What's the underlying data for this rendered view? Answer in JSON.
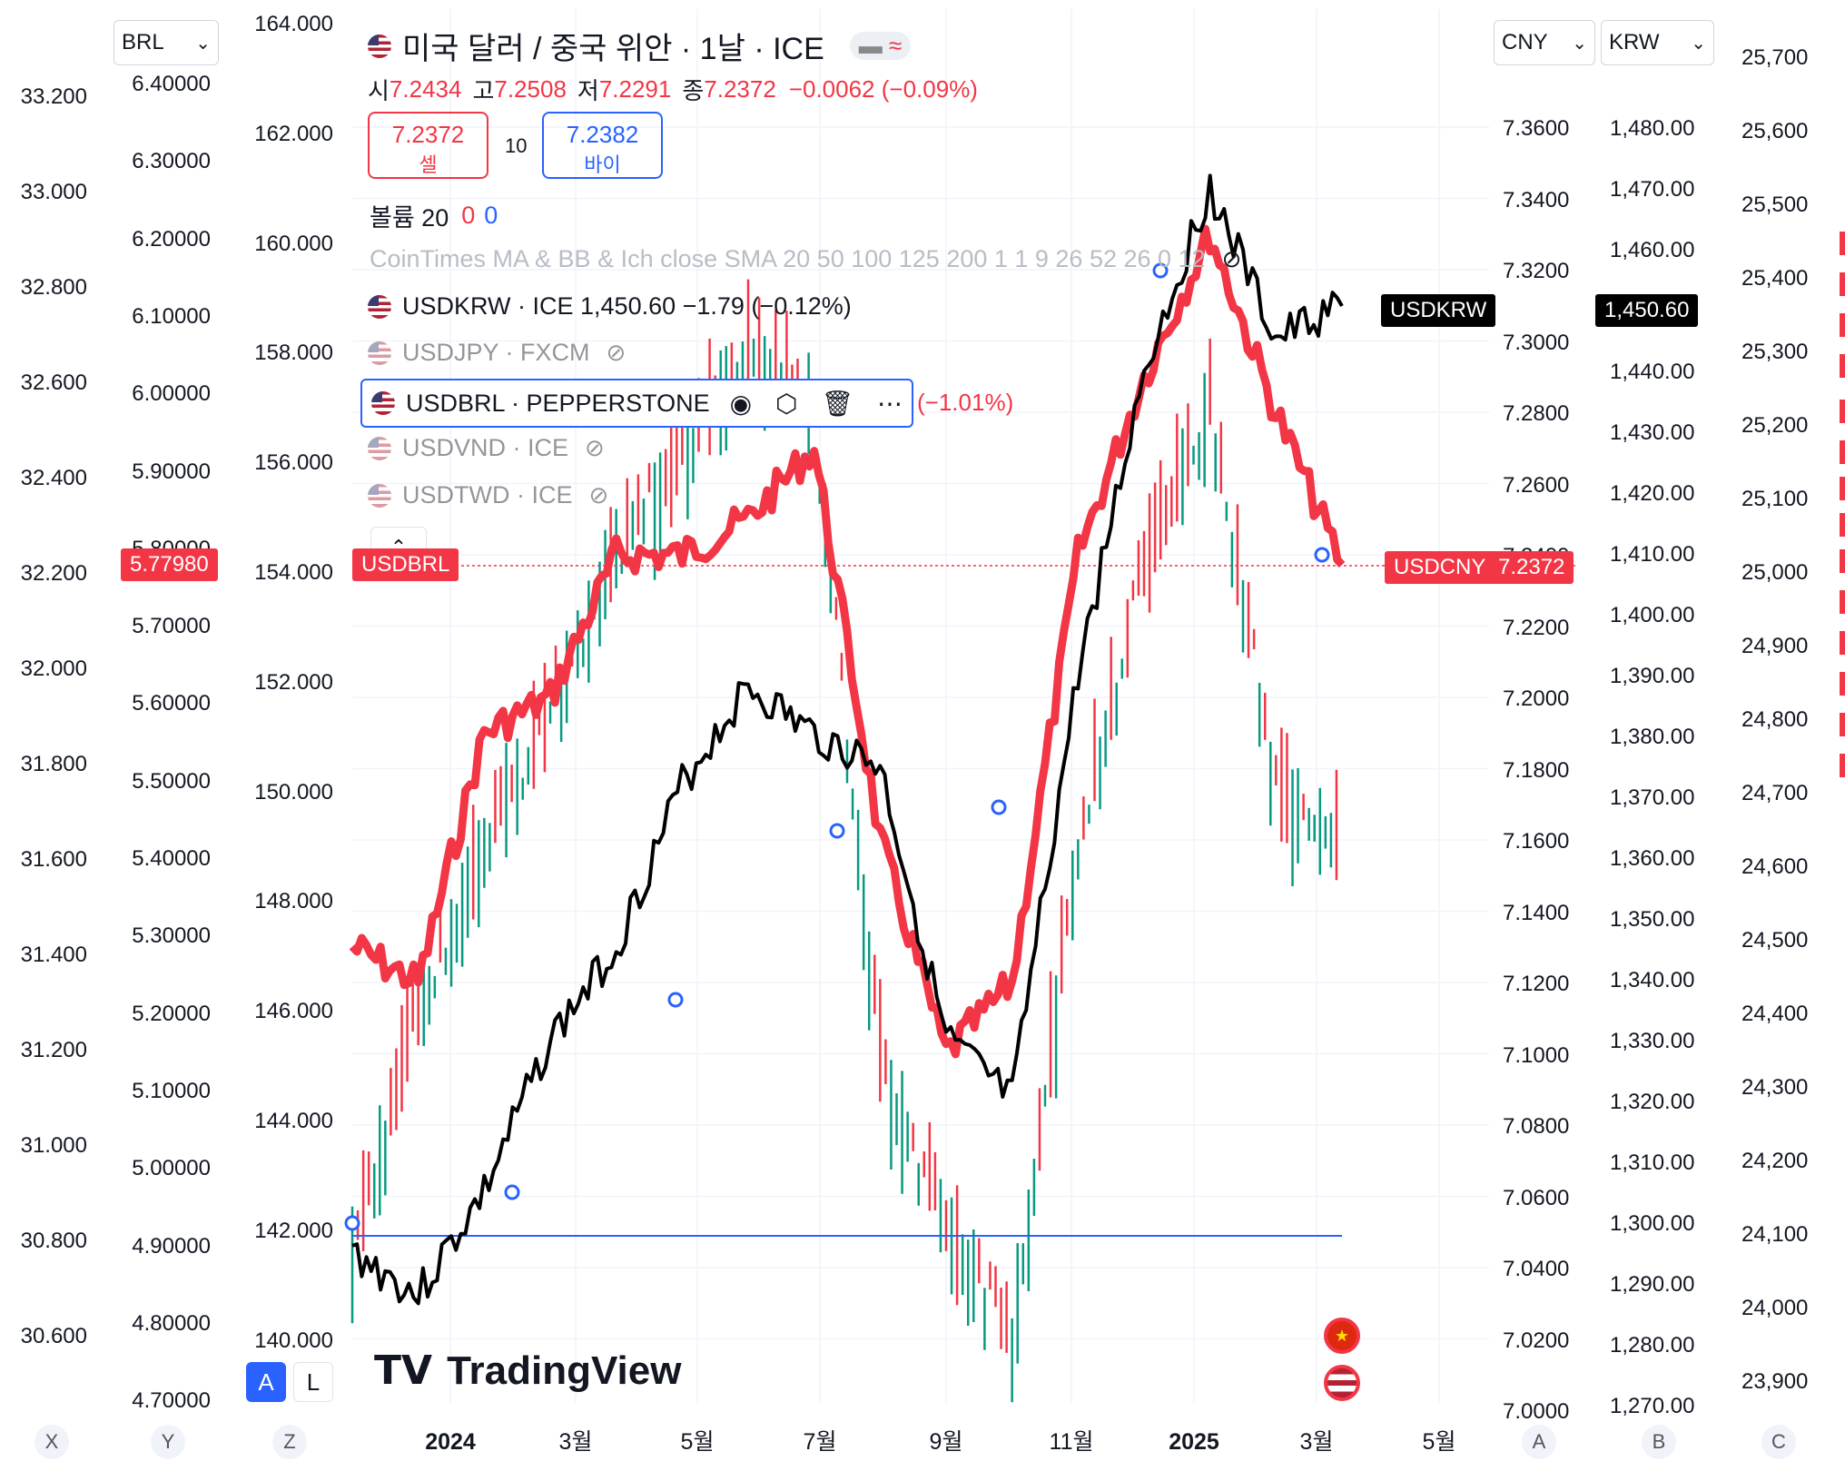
{
  "legend": {
    "symbol_title": "미국 달러 / 중국 위안 · 1날 · ICE",
    "ohlc": {
      "o_label": "시",
      "o": "7.2434",
      "h_label": "고",
      "h": "7.2508",
      "l_label": "저",
      "l": "7.2291",
      "c_label": "종",
      "c": "7.2372",
      "change": "−0.0062 (−0.09%)"
    },
    "sell": {
      "price": "7.2372",
      "label": "셀"
    },
    "spread": "10",
    "buy": {
      "price": "7.2382",
      "label": "바이"
    },
    "volume": {
      "label": "볼륨 20",
      "v1": "0",
      "v2": "0"
    },
    "indicator": "CoinTimes MA & BB & Ich close SMA 20 50 100 125 200 1 1 9 26 52 26 0 12",
    "compares": [
      {
        "text": "USDKRW · ICE  1,450.60  −1.79 (−0.12%)",
        "hidden": false
      },
      {
        "text": "USDJPY · FXCM",
        "hidden": true
      },
      {
        "text": "USDBRL · PEPPERSTONE",
        "hidden": false,
        "selected": true,
        "change": "(−1.01%)"
      },
      {
        "text": "USDVND · ICE",
        "hidden": true
      },
      {
        "text": "USDTWD · ICE",
        "hidden": true
      }
    ]
  },
  "scale_selectors": {
    "left": "BRL",
    "right1": "CNY",
    "right2": "KRW"
  },
  "axes": {
    "twd": [
      "33.200",
      "33.000",
      "32.800",
      "32.600",
      "32.400",
      "32.200",
      "32.000",
      "31.800",
      "31.600",
      "31.400",
      "31.200",
      "31.000",
      "30.800",
      "30.600"
    ],
    "brl": [
      "6.40000",
      "6.30000",
      "6.20000",
      "6.10000",
      "6.00000",
      "5.90000",
      "5.80000",
      "5.70000",
      "5.60000",
      "5.50000",
      "5.40000",
      "5.30000",
      "5.20000",
      "5.10000",
      "5.00000",
      "4.90000",
      "4.80000",
      "4.70000"
    ],
    "jpy": [
      "164.000",
      "162.000",
      "160.000",
      "158.000",
      "156.000",
      "154.000",
      "152.000",
      "150.000",
      "148.000",
      "146.000",
      "144.000",
      "142.000",
      "140.000"
    ],
    "cny": [
      "7.3600",
      "7.3400",
      "7.3200",
      "7.3000",
      "7.2800",
      "7.2600",
      "7.2400",
      "7.2200",
      "7.2000",
      "7.1800",
      "7.1600",
      "7.1400",
      "7.1200",
      "7.1000",
      "7.0800",
      "7.0600",
      "7.0400",
      "7.0200",
      "7.0000"
    ],
    "krw": [
      "1,480.00",
      "1,470.00",
      "1,460.00",
      "1,450.00",
      "1,440.00",
      "1,430.00",
      "1,420.00",
      "1,410.00",
      "1,400.00",
      "1,390.00",
      "1,380.00",
      "1,370.00",
      "1,360.00",
      "1,350.00",
      "1,340.00",
      "1,330.00",
      "1,320.00",
      "1,310.00",
      "1,300.00",
      "1,290.00",
      "1,280.00",
      "1,270.00"
    ],
    "vnd": [
      "25,700",
      "25,600",
      "25,500",
      "25,400",
      "25,300",
      "25,200",
      "25,100",
      "25,000",
      "24,900",
      "24,800",
      "24,700",
      "24,600",
      "24,500",
      "24,400",
      "24,300",
      "24,200",
      "24,100",
      "24,000",
      "23,900"
    ],
    "time": [
      "2024",
      "3월",
      "5월",
      "7월",
      "9월",
      "11월",
      "2025",
      "3월",
      "5월"
    ]
  },
  "tags": {
    "brl": "5.77980",
    "brl_name": "USDBRL",
    "krw_name": "USDKRW",
    "krw": "1,450.60",
    "cny_name": "USDCNY",
    "cny": "7.2372"
  },
  "bottom_letters": {
    "x": "X",
    "y": "Y",
    "z": "Z",
    "a": "A",
    "b": "B",
    "c": "C"
  },
  "scale_mode": {
    "auto": "A",
    "log": "L"
  },
  "brand": "TradingView",
  "colors": {
    "cny": "#f23645",
    "krw": "#000000",
    "jpy_up": "#089981",
    "jpy_down": "#f23645",
    "hline": "#2962ff",
    "accent": "#2962ff"
  },
  "chart_data": {
    "type": "line",
    "x": [
      "2023-12",
      "2024-01",
      "2024-02",
      "2024-03",
      "2024-04",
      "2024-05",
      "2024-06",
      "2024-07",
      "2024-08",
      "2024-09",
      "2024-10",
      "2024-11",
      "2024-12",
      "2025-01",
      "2025-02",
      "2025-03"
    ],
    "series": [
      {
        "name": "USDCNY",
        "axis": "CNY",
        "values": [
          7.13,
          7.12,
          7.19,
          7.2,
          7.24,
          7.24,
          7.25,
          7.27,
          7.16,
          7.1,
          7.12,
          7.24,
          7.29,
          7.33,
          7.28,
          7.2372
        ]
      },
      {
        "name": "USDKRW",
        "axis": "KRW",
        "values": [
          1295,
          1288,
          1305,
          1330,
          1345,
          1372,
          1388,
          1380,
          1375,
          1330,
          1320,
          1390,
          1440,
          1470,
          1445,
          1450.6
        ]
      },
      {
        "name": "USDJPY",
        "axis": "JPY",
        "values": [
          141.5,
          146,
          149,
          151.5,
          154.5,
          156,
          158,
          157,
          145,
          142,
          140,
          149,
          154,
          157,
          150,
          149
        ]
      }
    ],
    "hline": {
      "axis": "JPY",
      "value": 141.7
    }
  }
}
